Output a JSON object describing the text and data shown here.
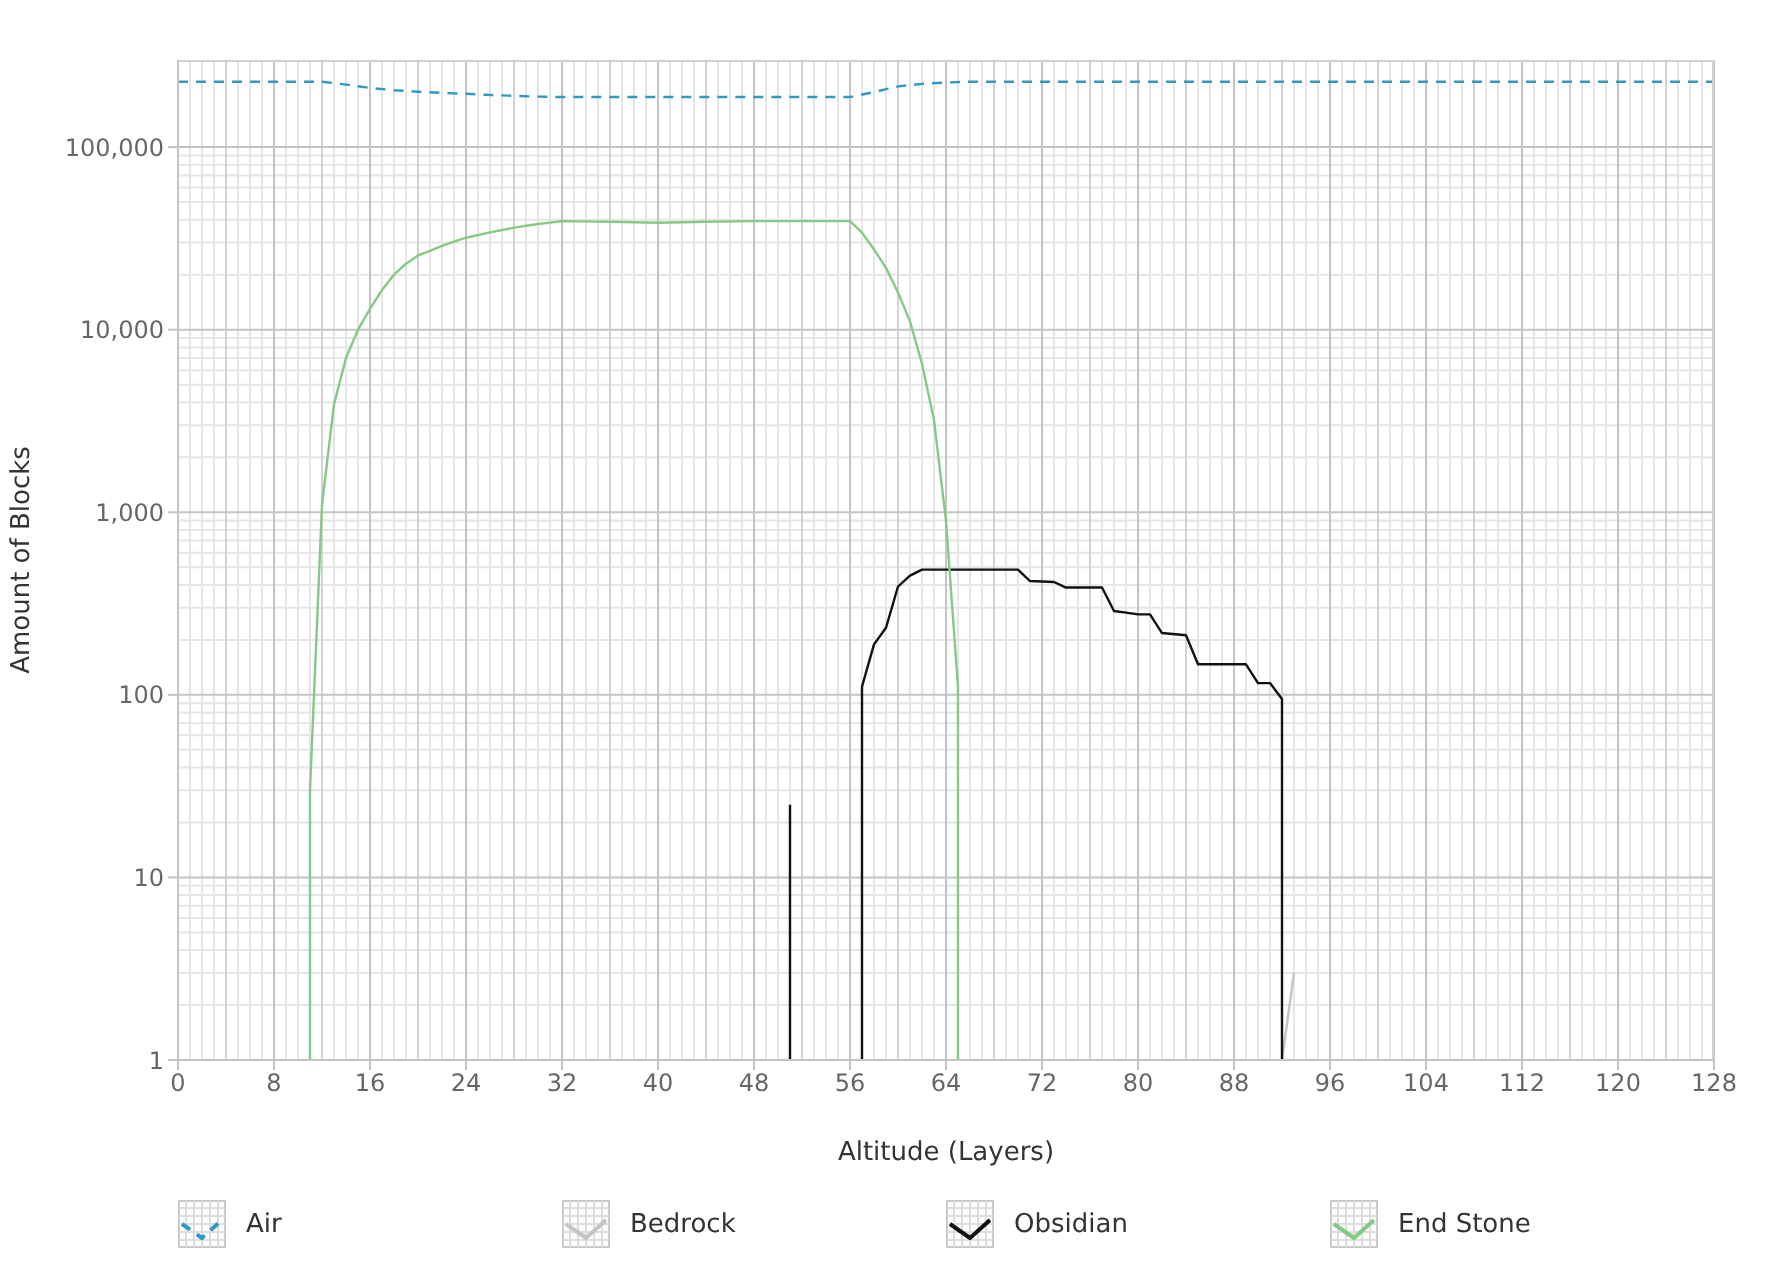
{
  "chart_data": {
    "type": "line",
    "xlabel": "Altitude (Layers)",
    "ylabel": "Amount of Blocks",
    "log": true,
    "grid": true,
    "legend": "bottom",
    "xlim": [
      0,
      128
    ],
    "xticks": [
      0,
      8,
      16,
      24,
      32,
      40,
      48,
      56,
      64,
      72,
      80,
      88,
      96,
      104,
      112,
      120,
      128
    ],
    "ylim": [
      1,
      300000
    ],
    "yticks": [
      1,
      10,
      100,
      {
        "value": 1000,
        "label": "1,000"
      },
      {
        "value": 10000,
        "label": "10,000"
      },
      {
        "value": 100000,
        "label": "100,000"
      }
    ],
    "series": [
      {
        "name": "Air",
        "color": "#2e9ac4",
        "line_style": "dashed",
        "x": [
          0,
          4,
          8,
          12,
          14,
          16,
          18,
          20,
          22,
          24,
          26,
          28,
          30,
          32,
          40,
          48,
          56,
          58,
          60,
          62,
          64,
          66,
          72,
          80,
          88,
          96,
          104,
          112,
          120,
          128
        ],
        "values": [
          228000,
          228000,
          228000,
          228000,
          220000,
          211000,
          205000,
          201000,
          198000,
          196000,
          193000,
          191000,
          189000,
          188000,
          188000,
          188000,
          188000,
          200000,
          215000,
          222000,
          226000,
          228000,
          228000,
          228000,
          228000,
          228000,
          228000,
          228000,
          228000,
          228000
        ]
      },
      {
        "name": "Bedrock",
        "color": "#c4c4c4",
        "x": [
          92,
          93
        ],
        "values": [
          1,
          3
        ]
      },
      {
        "name": "Obsidian",
        "color": "#111111",
        "x": [
          51,
          51,
          52,
          57,
          57,
          58,
          59,
          60,
          61,
          62,
          70,
          71,
          73,
          74,
          77,
          78,
          79,
          80,
          81,
          82,
          84,
          85,
          89,
          90,
          91,
          92,
          92
        ],
        "values": [
          1,
          25,
          null,
          1,
          111,
          189,
          233,
          392,
          450,
          485,
          485,
          420,
          415,
          387,
          387,
          288,
          282,
          276,
          276,
          218,
          212,
          147,
          147,
          116,
          116,
          95,
          1
        ]
      },
      {
        "name": "End Stone",
        "color": "#85c985",
        "x": [
          11,
          11,
          12,
          13,
          14,
          15,
          16,
          17,
          18,
          19,
          20,
          21,
          22,
          23,
          24,
          26,
          28,
          30,
          32,
          36,
          40,
          44,
          48,
          56,
          57,
          58,
          59,
          60,
          61,
          62,
          63,
          64,
          65,
          65
        ],
        "values": [
          1,
          30,
          1100,
          3900,
          7000,
          10000,
          13000,
          16500,
          20000,
          23000,
          25500,
          27000,
          28800,
          30400,
          31900,
          34100,
          36200,
          37900,
          39300,
          39000,
          38500,
          39000,
          39300,
          39300,
          34000,
          27500,
          21800,
          16000,
          11100,
          6500,
          3200,
          900,
          110,
          1
        ]
      }
    ]
  }
}
